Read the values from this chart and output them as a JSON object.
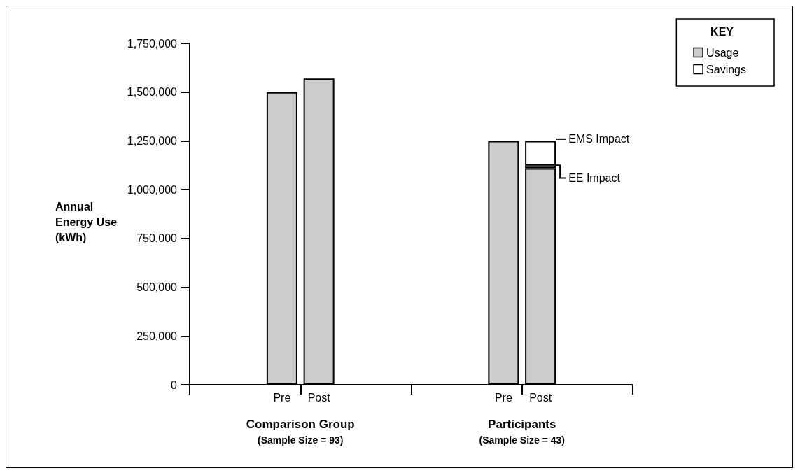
{
  "chart_data": {
    "type": "bar",
    "stacked": true,
    "ylabel": "Annual\nEnergy Use\n(kWh)",
    "legend_title": "KEY",
    "legend": "top right",
    "grid": false,
    "categories": [
      "Pre",
      "Post",
      "Pre",
      "Post"
    ],
    "series": [
      {
        "name": "Usage",
        "color": "#cccccc",
        "values": [
          1500000,
          1570000,
          1250000,
          1110000
        ]
      },
      {
        "name": "Savings",
        "color": "#ffffff",
        "values": [
          null,
          null,
          null,
          15000
        ]
      },
      {
        "color": "#ffffff",
        "values": [
          null,
          null,
          null,
          125000
        ]
      }
    ],
    "ylim": [
      0,
      1750000
    ],
    "yticks": [
      0,
      {
        "value": 250000,
        "label": "250,000"
      },
      {
        "value": 500000,
        "label": "500,000"
      },
      {
        "value": 750000,
        "label": "750,000"
      },
      {
        "value": 1000000,
        "label": "1,000,000"
      },
      {
        "value": 1250000,
        "label": "1,250,000"
      },
      {
        "value": 1500000,
        "label": "1,500,000"
      },
      {
        "value": 1750000,
        "label": "1,750,000"
      }
    ],
    "annotations": [
      "Comparison Group",
      "(Sample Size = 93)",
      "Participants",
      "(Sample Size = 43)",
      "EMS Impact",
      "EE Impact"
    ]
  }
}
